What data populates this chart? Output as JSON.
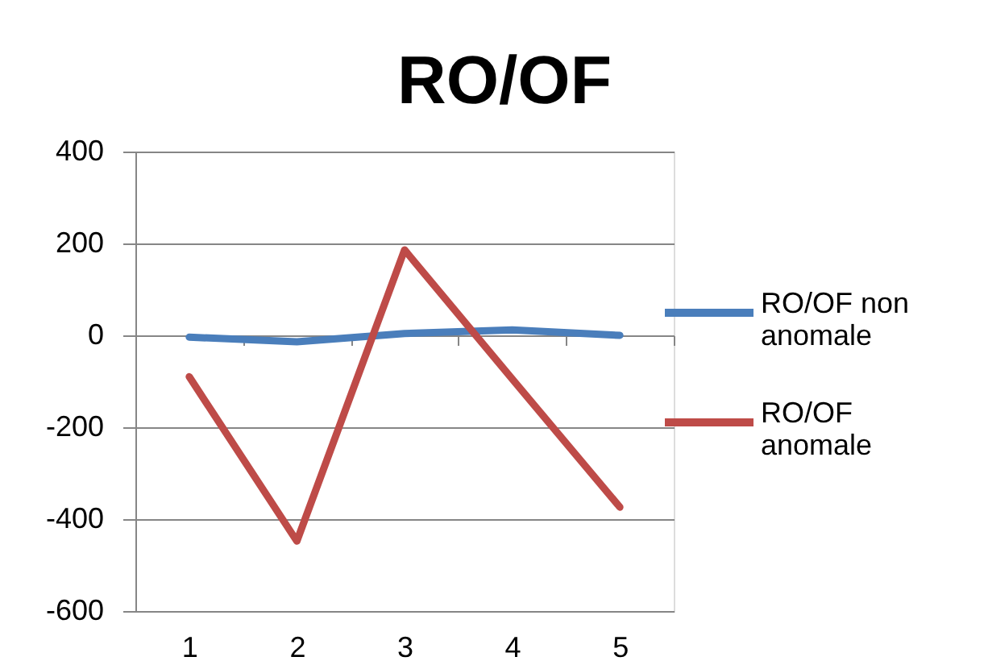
{
  "chart_data": {
    "type": "line",
    "title": "RO/OF",
    "categories": [
      "1",
      "2",
      "3",
      "4",
      "5"
    ],
    "series": [
      {
        "name": "RO/OF non anomale",
        "color": "#4a7ebb",
        "values": [
          -4,
          -14,
          4,
          12,
          0
        ]
      },
      {
        "name": "RO/OF anomale",
        "color": "#be4b48",
        "values": [
          -90,
          -448,
          186,
          -95,
          -374
        ]
      }
    ],
    "ylim": [
      -600,
      400
    ],
    "yticks": [
      -600,
      -400,
      -200,
      0,
      200,
      400
    ],
    "grid": "y",
    "legend": "right"
  }
}
